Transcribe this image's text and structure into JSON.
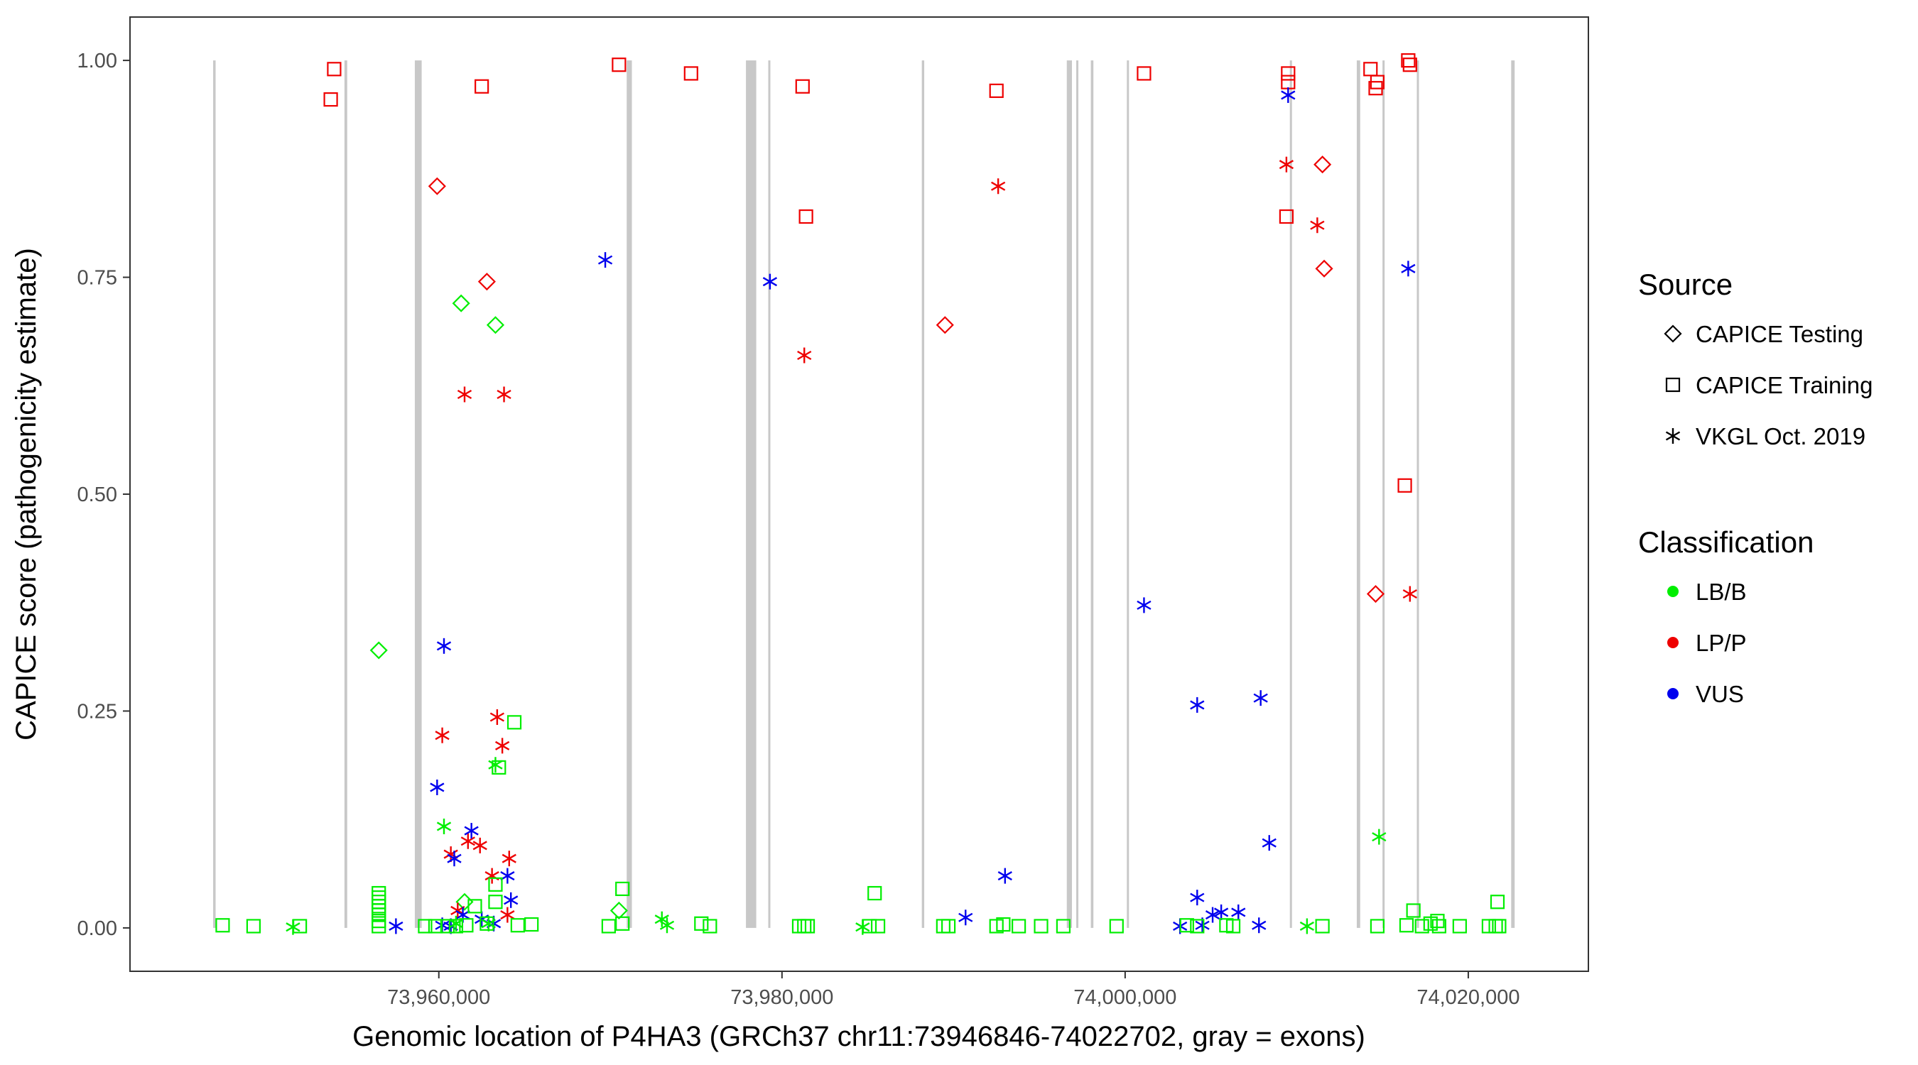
{
  "chart_data": {
    "type": "scatter",
    "title": "",
    "xlabel": "Genomic location of P4HA3 (GRCh37 chr11:73946846-74022702, gray = exons)",
    "ylabel": "CAPICE score (pathogenicity estimate)",
    "xlim": [
      73942000,
      74027000
    ],
    "ylim": [
      -0.05,
      1.05
    ],
    "grid": false,
    "x_ticks": [
      73960000,
      73980000,
      74000000,
      74020000
    ],
    "x_tick_labels": [
      "73,960,000",
      "73,980,000",
      "74,000,000",
      "74,020,000"
    ],
    "y_ticks": [
      0,
      0.25,
      0.5,
      0.75,
      1
    ],
    "y_tick_labels": [
      "0.00",
      "0.25",
      "0.50",
      "0.75",
      "1.00"
    ],
    "exons": [
      [
        73946846,
        73946990
      ],
      [
        73954500,
        73954660
      ],
      [
        73958600,
        73959000
      ],
      [
        73970950,
        73971250
      ],
      [
        73977900,
        73978500
      ],
      [
        73979200,
        73979320
      ],
      [
        73988150,
        73988290
      ],
      [
        73996600,
        73996900
      ],
      [
        73997150,
        73997260
      ],
      [
        73998000,
        73998150
      ],
      [
        74000100,
        74000200
      ],
      [
        74009600,
        74009700
      ],
      [
        74013500,
        74013700
      ],
      [
        74015000,
        74015100
      ],
      [
        74017000,
        74017100
      ],
      [
        74022500,
        74022702
      ]
    ],
    "legend": {
      "source_title": "Source",
      "source_items": [
        {
          "key": "diamond",
          "label": "CAPICE Testing"
        },
        {
          "key": "square",
          "label": "CAPICE Training"
        },
        {
          "key": "asterisk",
          "label": "VKGL Oct. 2019"
        }
      ],
      "class_title": "Classification",
      "class_items": [
        {
          "key": "LB/B",
          "label": "LB/B",
          "color": "#00ee00"
        },
        {
          "key": "LP/P",
          "label": "LP/P",
          "color": "#ee0000"
        },
        {
          "key": "VUS",
          "label": "VUS",
          "color": "#0000ee"
        }
      ]
    },
    "series": [
      {
        "source": "CAPICE Training",
        "classification": "LP/P",
        "points": [
          [
            73953900,
            0.99
          ],
          [
            73953700,
            0.955
          ],
          [
            73962500,
            0.97
          ],
          [
            73970500,
            0.995
          ],
          [
            73974700,
            0.985
          ],
          [
            73981200,
            0.97
          ],
          [
            73981400,
            0.82
          ],
          [
            73992500,
            0.965
          ],
          [
            74001100,
            0.985
          ],
          [
            74009500,
            0.985
          ],
          [
            74009500,
            0.975
          ],
          [
            74009400,
            0.82
          ],
          [
            74014300,
            0.99
          ],
          [
            74014700,
            0.975
          ],
          [
            74014600,
            0.968
          ],
          [
            74016500,
            1.0
          ],
          [
            74016600,
            0.995
          ],
          [
            74016300,
            0.51
          ]
        ]
      },
      {
        "source": "CAPICE Testing",
        "classification": "LP/P",
        "points": [
          [
            73959900,
            0.855
          ],
          [
            73962800,
            0.745
          ],
          [
            73989500,
            0.695
          ],
          [
            74011500,
            0.88
          ],
          [
            74011600,
            0.76
          ],
          [
            74014600,
            0.385
          ]
        ]
      },
      {
        "source": "CAPICE Testing",
        "classification": "LB/B",
        "points": [
          [
            73956500,
            0.32
          ],
          [
            73961300,
            0.72
          ],
          [
            73963300,
            0.695
          ],
          [
            73961500,
            0.03
          ],
          [
            73970500,
            0.02
          ]
        ]
      },
      {
        "source": "VKGL Oct. 2019",
        "classification": "LP/P",
        "points": [
          [
            73961500,
            0.615
          ],
          [
            73963800,
            0.615
          ],
          [
            73992600,
            0.855
          ],
          [
            73981300,
            0.66
          ],
          [
            74009400,
            0.88
          ],
          [
            74011200,
            0.81
          ],
          [
            74016600,
            0.385
          ],
          [
            73960200,
            0.222
          ],
          [
            73963400,
            0.243
          ],
          [
            73963700,
            0.21
          ],
          [
            73960700,
            0.085
          ],
          [
            73961700,
            0.1
          ],
          [
            73962400,
            0.095
          ],
          [
            73964100,
            0.08
          ],
          [
            73963100,
            0.06
          ],
          [
            73961100,
            0.02
          ],
          [
            73964000,
            0.015
          ]
        ]
      },
      {
        "source": "VKGL Oct. 2019",
        "classification": "VUS",
        "points": [
          [
            73969700,
            0.77
          ],
          [
            73979300,
            0.745
          ],
          [
            74009500,
            0.96
          ],
          [
            74016500,
            0.76
          ],
          [
            74001100,
            0.372
          ],
          [
            74004200,
            0.257
          ],
          [
            74007900,
            0.265
          ],
          [
            74008400,
            0.098
          ],
          [
            73993000,
            0.06
          ],
          [
            73990700,
            0.012
          ],
          [
            73960300,
            0.325
          ],
          [
            73959900,
            0.162
          ],
          [
            73961900,
            0.112
          ],
          [
            73960900,
            0.08
          ],
          [
            73964000,
            0.06
          ],
          [
            73964200,
            0.032
          ],
          [
            73957500,
            0.002
          ],
          [
            73960200,
            0.003
          ],
          [
            73960700,
            0.002
          ],
          [
            73961400,
            0.015
          ],
          [
            73962500,
            0.01
          ],
          [
            73963200,
            0.005
          ],
          [
            74003200,
            0.002
          ],
          [
            74004200,
            0.035
          ],
          [
            74005100,
            0.015
          ],
          [
            74005600,
            0.018
          ],
          [
            74006600,
            0.018
          ],
          [
            74004500,
            0.003
          ],
          [
            74007800,
            0.003
          ]
        ]
      },
      {
        "source": "VKGL Oct. 2019",
        "classification": "LB/B",
        "points": [
          [
            73960300,
            0.117
          ],
          [
            73963300,
            0.188
          ],
          [
            74014800,
            0.105
          ],
          [
            73973000,
            0.01
          ],
          [
            73973300,
            0.003
          ],
          [
            73951500,
            0.001
          ],
          [
            73984700,
            0.001
          ],
          [
            74010600,
            0.002
          ],
          [
            73961000,
            0.005
          ],
          [
            73962900,
            0.005
          ]
        ]
      },
      {
        "source": "CAPICE Training",
        "classification": "LB/B",
        "points": [
          [
            73947400,
            0.003
          ],
          [
            73949200,
            0.002
          ],
          [
            73951900,
            0.002
          ],
          [
            73956500,
            0.04
          ],
          [
            73956500,
            0.035
          ],
          [
            73956500,
            0.03
          ],
          [
            73956500,
            0.025
          ],
          [
            73956500,
            0.02
          ],
          [
            73956500,
            0.015
          ],
          [
            73956500,
            0.008
          ],
          [
            73956500,
            0.002
          ],
          [
            73959200,
            0.002
          ],
          [
            73959800,
            0.002
          ],
          [
            73960500,
            0.002
          ],
          [
            73961000,
            0.002
          ],
          [
            73961600,
            0.003
          ],
          [
            73962100,
            0.025
          ],
          [
            73962800,
            0.005
          ],
          [
            73963300,
            0.05
          ],
          [
            73963300,
            0.03
          ],
          [
            73963500,
            0.185
          ],
          [
            73964400,
            0.237
          ],
          [
            73964600,
            0.003
          ],
          [
            73965400,
            0.004
          ],
          [
            73969900,
            0.002
          ],
          [
            73970700,
            0.045
          ],
          [
            73970700,
            0.005
          ],
          [
            73975300,
            0.005
          ],
          [
            73975800,
            0.002
          ],
          [
            73981000,
            0.002
          ],
          [
            73981300,
            0.002
          ],
          [
            73981500,
            0.002
          ],
          [
            73985400,
            0.04
          ],
          [
            73985100,
            0.002
          ],
          [
            73985600,
            0.002
          ],
          [
            73989400,
            0.002
          ],
          [
            73989700,
            0.002
          ],
          [
            73992500,
            0.002
          ],
          [
            73992900,
            0.004
          ],
          [
            73993800,
            0.002
          ],
          [
            73995100,
            0.002
          ],
          [
            73996400,
            0.002
          ],
          [
            73999500,
            0.002
          ],
          [
            74003600,
            0.003
          ],
          [
            74004200,
            0.002
          ],
          [
            74005900,
            0.003
          ],
          [
            74006300,
            0.002
          ],
          [
            74011500,
            0.002
          ],
          [
            74014700,
            0.002
          ],
          [
            74016400,
            0.003
          ],
          [
            74016800,
            0.02
          ],
          [
            74017300,
            0.002
          ],
          [
            74017800,
            0.005
          ],
          [
            74018200,
            0.008
          ],
          [
            74018300,
            0.002
          ],
          [
            74019500,
            0.002
          ],
          [
            74021200,
            0.002
          ],
          [
            74021600,
            0.002
          ],
          [
            74021700,
            0.03
          ],
          [
            74021800,
            0.002
          ]
        ]
      }
    ]
  }
}
